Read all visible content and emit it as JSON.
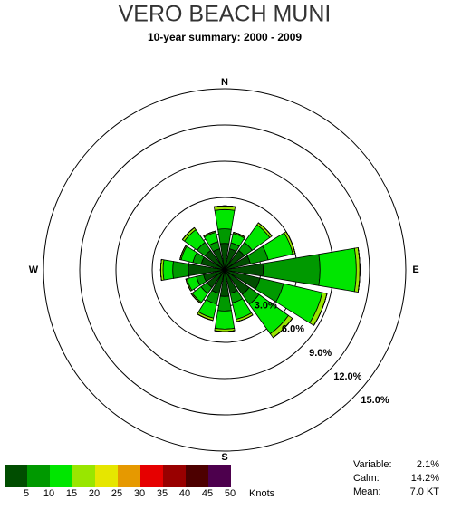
{
  "chart_data": {
    "type": "windrose",
    "title": "VERO BEACH MUNI",
    "subtitle": "10-year summary: 2000 - 2009",
    "categories": [
      "N",
      null,
      null,
      null,
      "E",
      null,
      null,
      null,
      "S",
      null,
      null,
      null,
      "W",
      null,
      null,
      null
    ],
    "rlim": [
      0,
      15
    ],
    "rticks": [
      {
        "value": 3,
        "label": "3.0%"
      },
      {
        "value": 6,
        "label": "6.0%"
      },
      {
        "value": 9,
        "label": "9.0%"
      },
      {
        "value": 12,
        "label": "12.0%"
      },
      {
        "value": 15,
        "label": "15.0%"
      }
    ],
    "series": [
      {
        "color": "#004d00",
        "values": [
          2.2,
          1.8,
          2.0,
          2.2,
          3.2,
          3.0,
          2.5,
          2.0,
          2.2,
          2.0,
          1.8,
          1.8,
          3.0,
          2.0,
          2.0,
          1.8
        ]
      },
      {
        "color": "#009900",
        "values": [
          1.2,
          0.5,
          0.8,
          1.5,
          4.7,
          2.0,
          1.0,
          0.8,
          1.2,
          0.9,
          0.6,
          0.6,
          1.3,
          0.7,
          0.8,
          0.6
        ]
      },
      {
        "color": "#00e600",
        "values": [
          1.6,
          0.8,
          1.8,
          2.1,
          3.0,
          3.3,
          3.0,
          1.4,
          1.5,
          1.2,
          0.9,
          0.8,
          0.8,
          1.0,
          1.3,
          0.8
        ]
      },
      {
        "color": "#99e600",
        "values": [
          0.3,
          0.1,
          0.2,
          0.2,
          0.3,
          0.4,
          0.4,
          0.2,
          0.2,
          0.2,
          0.1,
          0.1,
          0.2,
          0.1,
          0.2,
          0.1
        ]
      },
      {
        "color": "#e6e600",
        "values": [
          0,
          0,
          0,
          0,
          0,
          0,
          0,
          0,
          0,
          0,
          0,
          0,
          0,
          0,
          0,
          0
        ]
      },
      {
        "color": "#e69900",
        "values": [
          0,
          0,
          0,
          0,
          0,
          0,
          0,
          0,
          0,
          0,
          0,
          0,
          0,
          0,
          0,
          0
        ]
      },
      {
        "color": "#e60000",
        "values": [
          0,
          0,
          0,
          0,
          0,
          0,
          0,
          0,
          0,
          0,
          0,
          0,
          0,
          0,
          0,
          0
        ]
      },
      {
        "color": "#990000",
        "values": [
          0,
          0,
          0,
          0,
          0,
          0,
          0,
          0,
          0,
          0,
          0,
          0,
          0,
          0,
          0,
          0
        ]
      },
      {
        "color": "#4d0000",
        "values": [
          0,
          0,
          0,
          0,
          0,
          0,
          0,
          0,
          0,
          0,
          0,
          0,
          0,
          0,
          0,
          0
        ]
      },
      {
        "color": "#4d004d",
        "values": [
          0,
          0,
          0,
          0,
          0,
          0,
          0,
          0,
          0,
          0,
          0,
          0,
          0,
          0,
          0,
          0
        ]
      }
    ],
    "speed_ticks": [
      5,
      10,
      15,
      20,
      25,
      30,
      35,
      40,
      45,
      50
    ],
    "speed_unit": "Knots",
    "stats": [
      {
        "label": "Variable:",
        "value": "2.1%"
      },
      {
        "label": "Calm:",
        "value": "14.2%"
      },
      {
        "label": "Mean:",
        "value": "7.0 KT"
      }
    ]
  }
}
